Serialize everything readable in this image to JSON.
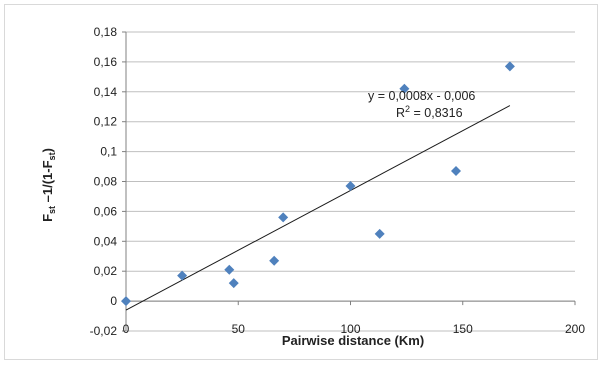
{
  "chart_data": {
    "type": "scatter",
    "title": "",
    "xlabel": "Pairwise distance (Km)",
    "ylabel": "Fst - 1/(1-Fst)",
    "ylabel_parts": [
      "F",
      "st",
      " –1/(1-F",
      "st",
      ")"
    ],
    "xlim": [
      0,
      200
    ],
    "ylim": [
      -0.02,
      0.18
    ],
    "x_ticks": [
      "0",
      "50",
      "100",
      "150",
      "200"
    ],
    "y_ticks": [
      "-0,02",
      "0",
      "0,02",
      "0,04",
      "0,06",
      "0,08",
      "0,1",
      "0,12",
      "0,14",
      "0,16",
      "0,18"
    ],
    "grid": "horizontal",
    "marker_color": "#4f81bd",
    "series": [
      {
        "points": [
          {
            "x": 0,
            "y": 0.0
          },
          {
            "x": 25,
            "y": 0.017
          },
          {
            "x": 46,
            "y": 0.021
          },
          {
            "x": 48,
            "y": 0.012
          },
          {
            "x": 66,
            "y": 0.027
          },
          {
            "x": 70,
            "y": 0.056
          },
          {
            "x": 100,
            "y": 0.077
          },
          {
            "x": 113,
            "y": 0.045
          },
          {
            "x": 124,
            "y": 0.142
          },
          {
            "x": 147,
            "y": 0.087
          },
          {
            "x": 171,
            "y": 0.157
          }
        ]
      }
    ],
    "trendline": {
      "slope": 0.0008,
      "intercept": -0.006,
      "x_range": [
        0,
        171
      ],
      "equation": "y = 0,0008x - 0,006",
      "r2_label": "R",
      "r2_sup": "2",
      "r2_value": " = 0,8316"
    }
  }
}
